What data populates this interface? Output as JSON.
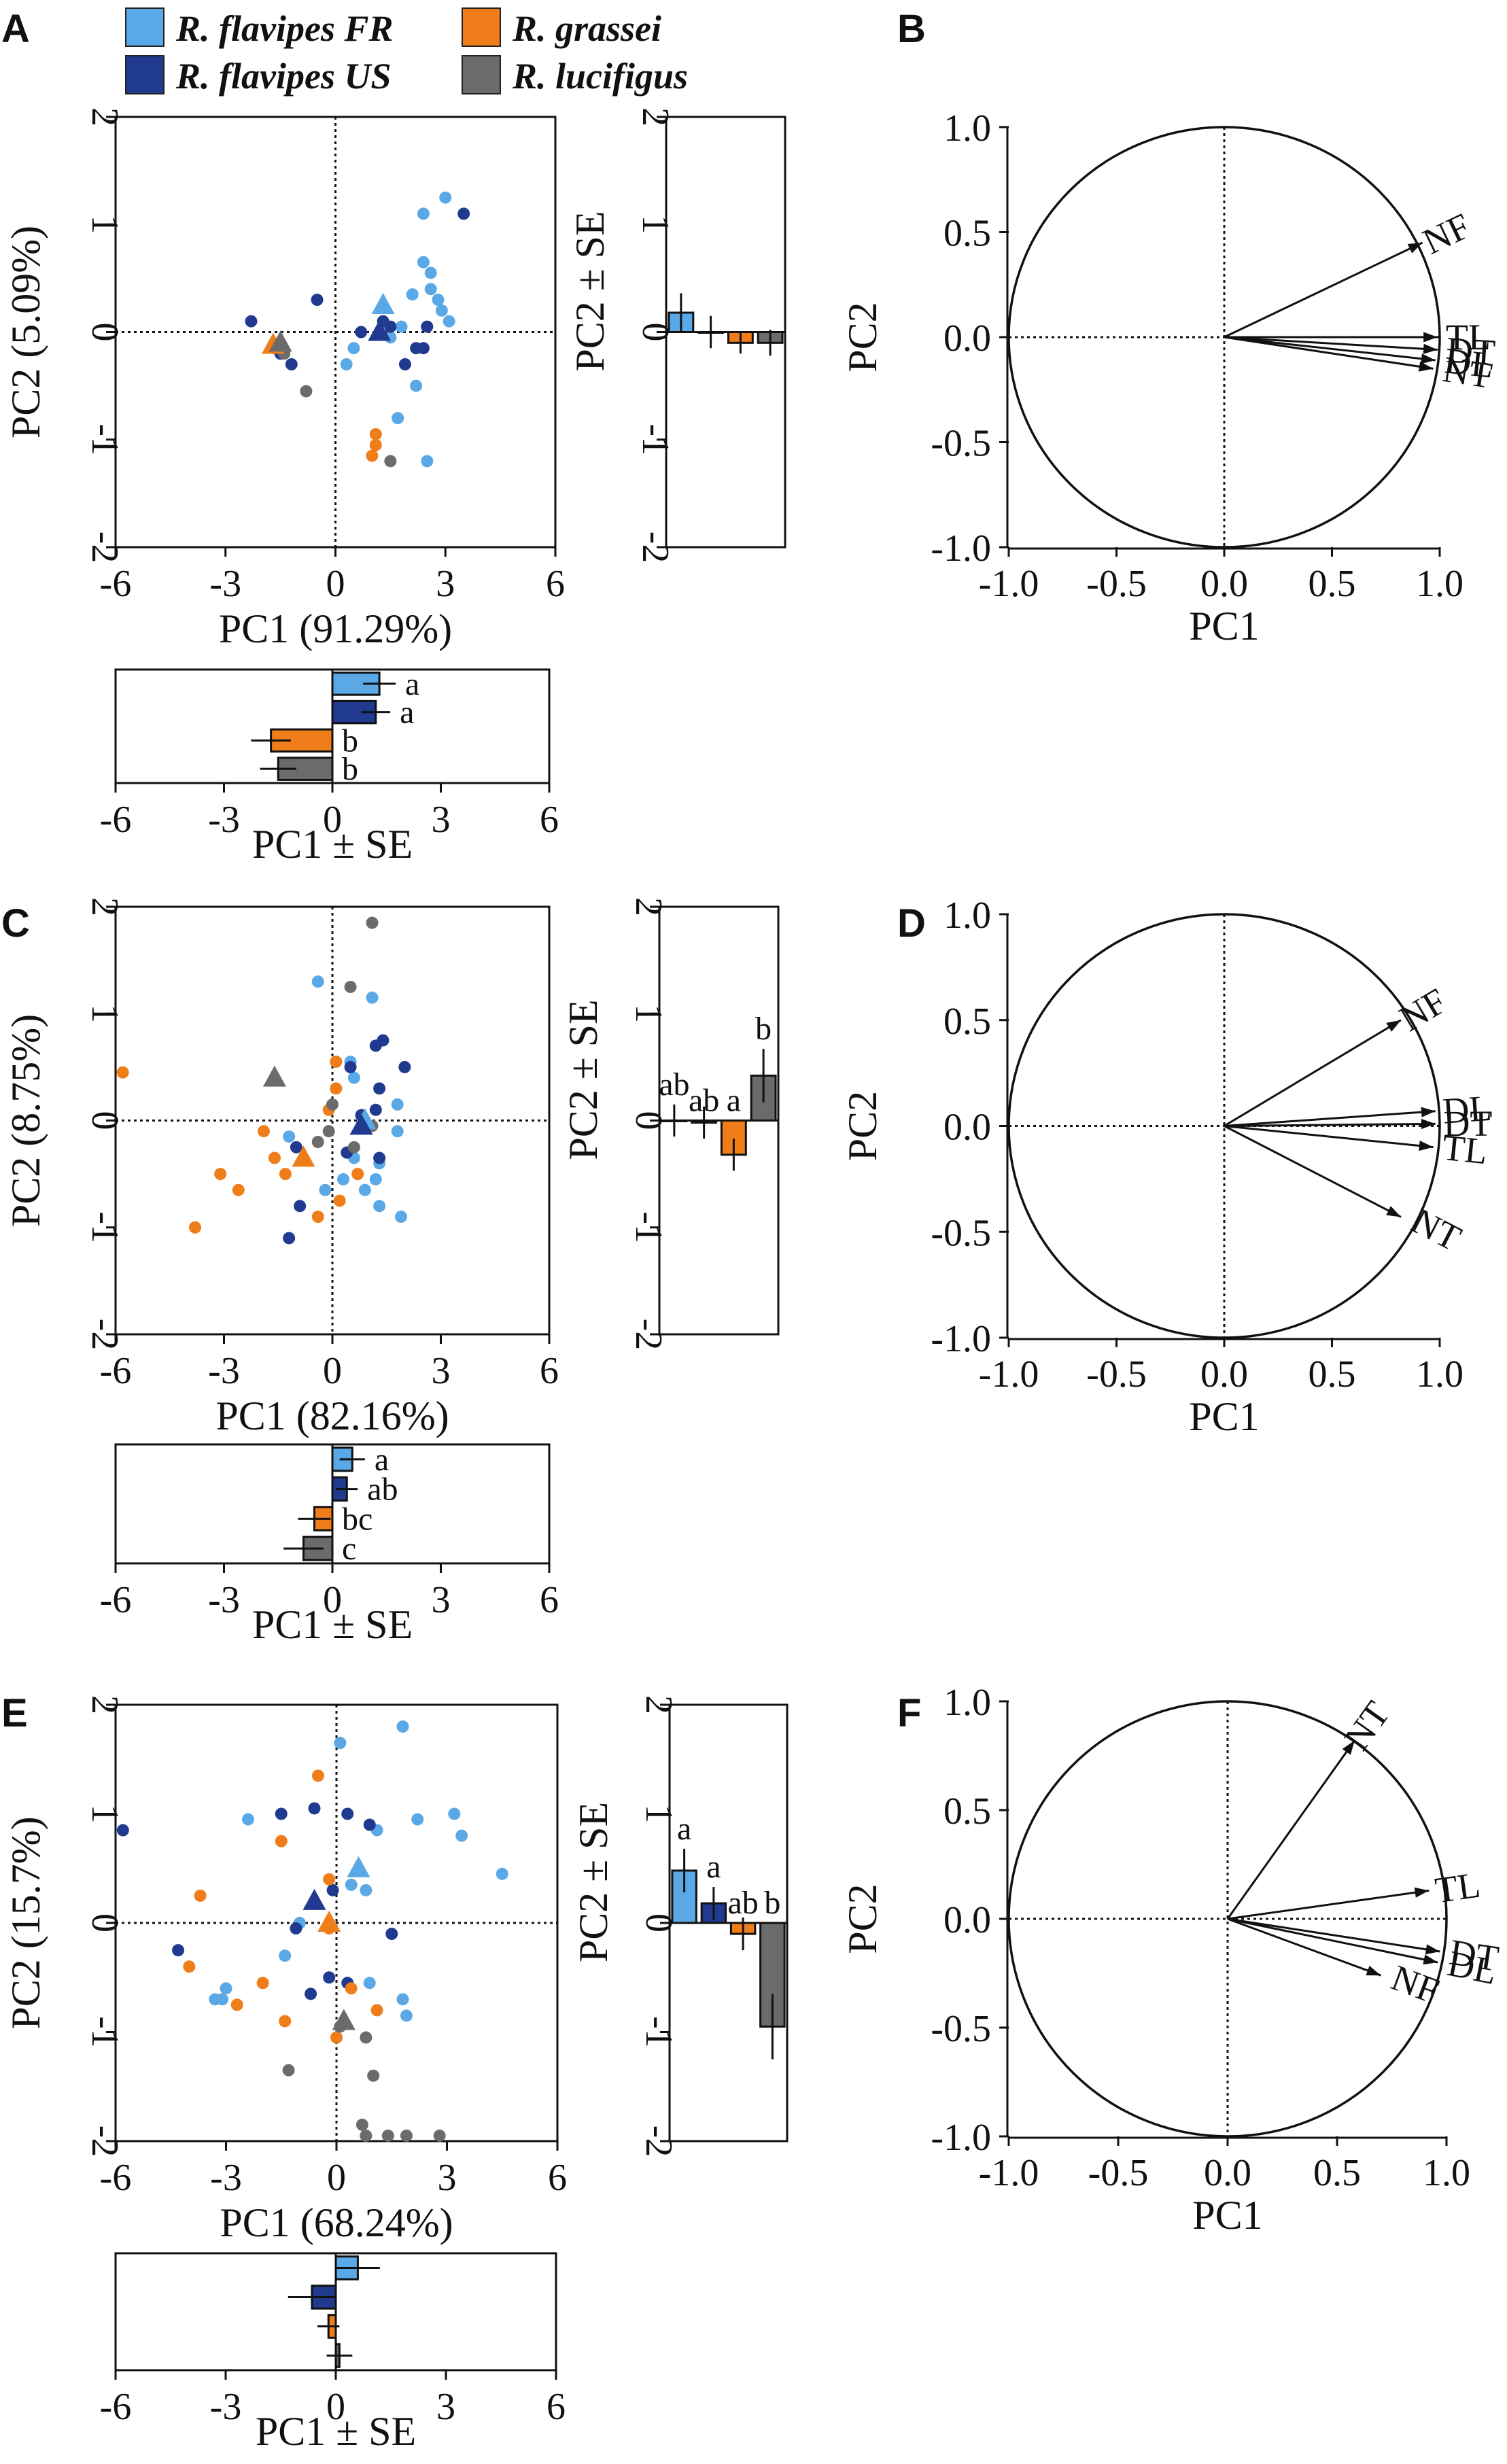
{
  "legend": {
    "entries": [
      {
        "label": "R. flavipes FR",
        "color": "#5aa9e6"
      },
      {
        "label": "R. flavipes US",
        "color": "#1f3a8f"
      },
      {
        "label": "R. grassei",
        "color": "#ef7d1a"
      },
      {
        "label": "R. lucifigus",
        "color": "#6b6b6b"
      }
    ]
  },
  "panel_labels": [
    "A",
    "B",
    "C",
    "D",
    "E",
    "F"
  ],
  "colors": {
    "fr": "#5aa9e6",
    "us": "#1f3a8f",
    "gr": "#ef7d1a",
    "lu": "#6b6b6b",
    "axis": "#111111"
  },
  "chart_data": [
    {
      "panel": "A",
      "type": "scatter",
      "xlabel": "PC1 (91.29%)",
      "ylabel": "PC2 (5.09%)",
      "xlim": [
        -6,
        6
      ],
      "ylim": [
        -2,
        2
      ],
      "xticks": [
        "-6",
        "-3",
        "0",
        "3",
        "6"
      ],
      "yticks": [
        "-2",
        "-1",
        "0",
        "1",
        "2"
      ],
      "series": [
        {
          "name": "R. flavipes FR",
          "points": [
            [
              2.4,
              1.1
            ],
            [
              3.0,
              1.25
            ],
            [
              2.4,
              0.65
            ],
            [
              2.6,
              0.55
            ],
            [
              2.6,
              0.4
            ],
            [
              2.8,
              0.3
            ],
            [
              2.9,
              0.2
            ],
            [
              3.1,
              0.1
            ],
            [
              2.1,
              0.35
            ],
            [
              1.8,
              0.05
            ],
            [
              1.5,
              -0.05
            ],
            [
              0.5,
              -0.15
            ],
            [
              0.3,
              -0.3
            ],
            [
              2.2,
              -0.5
            ],
            [
              1.7,
              -0.8
            ],
            [
              2.5,
              -1.2
            ]
          ],
          "centroid": [
            1.3,
            0.25
          ]
        },
        {
          "name": "R. flavipes US",
          "points": [
            [
              3.5,
              1.1
            ],
            [
              -2.3,
              0.1
            ],
            [
              -0.5,
              0.3
            ],
            [
              1.5,
              0.05
            ],
            [
              0.7,
              0.0
            ],
            [
              -1.5,
              -0.2
            ],
            [
              -1.2,
              -0.3
            ],
            [
              1.3,
              0.1
            ],
            [
              2.5,
              0.05
            ],
            [
              2.4,
              -0.15
            ],
            [
              2.2,
              -0.15
            ],
            [
              1.9,
              -0.3
            ]
          ],
          "centroid": [
            1.2,
            0.0
          ]
        },
        {
          "name": "R. grassei",
          "points": [
            [
              -1.7,
              -0.15
            ],
            [
              1.1,
              -0.95
            ],
            [
              1.1,
              -1.05
            ],
            [
              1.0,
              -1.15
            ]
          ],
          "centroid": [
            -1.7,
            -0.12
          ]
        },
        {
          "name": "R. lucifigus",
          "points": [
            [
              -1.4,
              -0.2
            ],
            [
              -0.8,
              -0.55
            ],
            [
              1.5,
              -1.2
            ]
          ],
          "centroid": [
            -1.5,
            -0.1
          ]
        }
      ]
    },
    {
      "panel": "A-PC2",
      "type": "bar",
      "orientation": "vertical",
      "ylabel": "PC2 ± SE",
      "ylim": [
        -2,
        2
      ],
      "yticks": [
        "-2",
        "-1",
        "0",
        "1",
        "2"
      ],
      "categories": [
        "R. flavipes FR",
        "R. flavipes US",
        "R. grassei",
        "R. lucifigus"
      ],
      "values": [
        0.18,
        0.0,
        -0.1,
        -0.1
      ],
      "errors": [
        0.18,
        0.15,
        0.1,
        0.12
      ],
      "letters": [
        "",
        "",
        "",
        ""
      ]
    },
    {
      "panel": "A-PC1",
      "type": "bar",
      "orientation": "horizontal",
      "xlabel": "PC1 ± SE",
      "xlim": [
        -6,
        6
      ],
      "xticks": [
        "-6",
        "-3",
        "0",
        "3",
        "6"
      ],
      "categories": [
        "R. flavipes FR",
        "R. flavipes US",
        "R. grassei",
        "R. lucifigus"
      ],
      "values": [
        1.3,
        1.2,
        -1.7,
        -1.5
      ],
      "errors": [
        0.45,
        0.4,
        0.55,
        0.5
      ],
      "letters": [
        "a",
        "a",
        "b",
        "b"
      ]
    },
    {
      "panel": "B",
      "type": "line",
      "subtype": "correlation-circle",
      "xlabel": "PC1",
      "ylabel": "PC2",
      "xlim": [
        -1,
        1
      ],
      "ylim": [
        -1,
        1
      ],
      "xticks": [
        "-1.0",
        "-0.5",
        "0.0",
        "0.5",
        "1.0"
      ],
      "yticks": [
        "-1.0",
        "-0.5",
        "0.0",
        "0.5",
        "1.0"
      ],
      "vectors": [
        {
          "label": "NF",
          "x": 0.92,
          "y": 0.45
        },
        {
          "label": "TL",
          "x": 0.99,
          "y": 0.0
        },
        {
          "label": "DT",
          "x": 0.99,
          "y": -0.06
        },
        {
          "label": "DL",
          "x": 0.98,
          "y": -0.11
        },
        {
          "label": "NT",
          "x": 0.97,
          "y": -0.15
        }
      ]
    },
    {
      "panel": "C",
      "type": "scatter",
      "xlabel": "PC1 (82.16%)",
      "ylabel": "PC2 (8.75%)",
      "xlim": [
        -6,
        6
      ],
      "ylim": [
        -2,
        2
      ],
      "xticks": [
        "-6",
        "-3",
        "0",
        "3",
        "6"
      ],
      "yticks": [
        "-2",
        "-1",
        "0",
        "1",
        "2"
      ],
      "series": [
        {
          "name": "R. flavipes FR",
          "points": [
            [
              -0.4,
              1.3
            ],
            [
              1.1,
              1.15
            ],
            [
              0.5,
              0.55
            ],
            [
              0.6,
              0.4
            ],
            [
              1.8,
              0.15
            ],
            [
              1.8,
              -0.1
            ],
            [
              -1.2,
              -0.15
            ],
            [
              0.6,
              -0.35
            ],
            [
              1.3,
              -0.4
            ],
            [
              1.2,
              -0.55
            ],
            [
              0.9,
              -0.65
            ],
            [
              1.3,
              -0.8
            ],
            [
              1.9,
              -0.9
            ],
            [
              0.3,
              -0.55
            ],
            [
              -0.2,
              -0.65
            ]
          ],
          "centroid": [
            0.9,
            0.0
          ]
        },
        {
          "name": "R. flavipes US",
          "points": [
            [
              1.4,
              0.75
            ],
            [
              1.2,
              0.7
            ],
            [
              0.5,
              0.5
            ],
            [
              2.0,
              0.5
            ],
            [
              1.3,
              0.3
            ],
            [
              1.2,
              0.1
            ],
            [
              0.8,
              0.05
            ],
            [
              -1.0,
              -0.25
            ],
            [
              0.4,
              -0.3
            ],
            [
              -0.9,
              -0.8
            ],
            [
              -1.2,
              -1.1
            ],
            [
              1.3,
              -0.35
            ]
          ],
          "centroid": [
            0.8,
            -0.05
          ]
        },
        {
          "name": "R. grassei",
          "points": [
            [
              -5.8,
              0.45
            ],
            [
              0.1,
              0.55
            ],
            [
              0.1,
              0.3
            ],
            [
              -0.1,
              0.1
            ],
            [
              -1.9,
              -0.1
            ],
            [
              -1.6,
              -0.35
            ],
            [
              -3.1,
              -0.5
            ],
            [
              -1.3,
              -0.5
            ],
            [
              -2.6,
              -0.65
            ],
            [
              -0.4,
              -0.9
            ],
            [
              -3.8,
              -1.0
            ],
            [
              0.2,
              -0.75
            ],
            [
              0.7,
              -0.5
            ]
          ],
          "centroid": [
            -0.8,
            -0.35
          ]
        },
        {
          "name": "R. lucifigus",
          "points": [
            [
              1.1,
              1.85
            ],
            [
              0.5,
              1.25
            ],
            [
              0.0,
              0.15
            ],
            [
              -0.1,
              -0.1
            ],
            [
              -0.4,
              -0.2
            ],
            [
              1.1,
              -0.05
            ],
            [
              0.6,
              -0.25
            ]
          ],
          "centroid": [
            -1.6,
            0.4
          ]
        }
      ]
    },
    {
      "panel": "C-PC2",
      "type": "bar",
      "orientation": "vertical",
      "ylabel": "PC2 ± SE",
      "ylim": [
        -2,
        2
      ],
      "yticks": [
        "-2",
        "-1",
        "0",
        "1",
        "2"
      ],
      "categories": [
        "R. flavipes FR",
        "R. flavipes US",
        "R. grassei",
        "R. lucifigus"
      ],
      "values": [
        0.0,
        -0.02,
        -0.32,
        0.42
      ],
      "errors": [
        0.15,
        0.15,
        0.15,
        0.25
      ],
      "letters": [
        "ab",
        "ab",
        "a",
        "b"
      ]
    },
    {
      "panel": "C-PC1",
      "type": "bar",
      "orientation": "horizontal",
      "xlabel": "PC1 ± SE",
      "xlim": [
        -6,
        6
      ],
      "xticks": [
        "-6",
        "-3",
        "0",
        "3",
        "6"
      ],
      "categories": [
        "R. flavipes FR",
        "R. flavipes US",
        "R. grassei",
        "R. lucifigus"
      ],
      "values": [
        0.55,
        0.4,
        -0.5,
        -0.8
      ],
      "errors": [
        0.35,
        0.3,
        0.45,
        0.55
      ],
      "letters": [
        "a",
        "ab",
        "bc",
        "c"
      ]
    },
    {
      "panel": "D",
      "type": "line",
      "subtype": "correlation-circle",
      "xlabel": "PC1",
      "ylabel": "PC2",
      "xlim": [
        -1,
        1
      ],
      "ylim": [
        -1,
        1
      ],
      "xticks": [
        "-1.0",
        "-0.5",
        "0.0",
        "0.5",
        "1.0"
      ],
      "yticks": [
        "-1.0",
        "-0.5",
        "0.0",
        "0.5",
        "1.0"
      ],
      "vectors": [
        {
          "label": "NF",
          "x": 0.82,
          "y": 0.5
        },
        {
          "label": "DL",
          "x": 0.98,
          "y": 0.07
        },
        {
          "label": "DT",
          "x": 0.98,
          "y": 0.01
        },
        {
          "label": "TL",
          "x": 0.97,
          "y": -0.1
        },
        {
          "label": "NT",
          "x": 0.82,
          "y": -0.43
        }
      ]
    },
    {
      "panel": "E",
      "type": "scatter",
      "xlabel": "PC1 (68.24%)",
      "ylabel": "PC2 (15.7%)",
      "xlim": [
        -6,
        6
      ],
      "ylim": [
        -2,
        2
      ],
      "xticks": [
        "-6",
        "-3",
        "0",
        "3",
        "6"
      ],
      "yticks": [
        "-2",
        "-1",
        "0",
        "1",
        "2"
      ],
      "series": [
        {
          "name": "R. flavipes FR",
          "points": [
            [
              1.8,
              1.8
            ],
            [
              0.1,
              1.65
            ],
            [
              -2.4,
              0.95
            ],
            [
              3.2,
              1.0
            ],
            [
              3.4,
              0.8
            ],
            [
              4.5,
              0.45
            ],
            [
              2.2,
              0.95
            ],
            [
              1.1,
              0.85
            ],
            [
              0.4,
              0.35
            ],
            [
              0.8,
              0.3
            ],
            [
              -1.0,
              0.0
            ],
            [
              -3.3,
              -0.7
            ],
            [
              -3.0,
              -0.6
            ],
            [
              -3.1,
              -0.7
            ],
            [
              -1.4,
              -0.3
            ],
            [
              0.9,
              -0.55
            ],
            [
              1.8,
              -0.7
            ],
            [
              1.9,
              -0.85
            ]
          ],
          "centroid": [
            0.6,
            0.5
          ]
        },
        {
          "name": "R. flavipes US",
          "points": [
            [
              -5.8,
              0.85
            ],
            [
              -1.5,
              1.0
            ],
            [
              -0.6,
              1.05
            ],
            [
              0.3,
              1.0
            ],
            [
              0.9,
              0.9
            ],
            [
              -0.1,
              0.3
            ],
            [
              -1.1,
              -0.05
            ],
            [
              -4.3,
              -0.25
            ],
            [
              1.5,
              -0.1
            ],
            [
              -0.2,
              -0.5
            ],
            [
              0.3,
              -0.55
            ],
            [
              -0.7,
              -0.65
            ]
          ],
          "centroid": [
            -0.6,
            0.2
          ]
        },
        {
          "name": "R. grassei",
          "points": [
            [
              -0.5,
              1.35
            ],
            [
              -1.5,
              0.75
            ],
            [
              -0.2,
              0.4
            ],
            [
              -3.7,
              0.25
            ],
            [
              -0.2,
              -0.05
            ],
            [
              -4.0,
              -0.4
            ],
            [
              -2.0,
              -0.55
            ],
            [
              0.4,
              -0.6
            ],
            [
              -2.7,
              -0.75
            ],
            [
              -1.4,
              -0.9
            ],
            [
              1.1,
              -0.8
            ],
            [
              0.0,
              -1.05
            ]
          ],
          "centroid": [
            -0.2,
            0.0
          ]
        },
        {
          "name": "R. lucifigus",
          "points": [
            [
              -1.3,
              -1.35
            ],
            [
              0.1,
              -0.95
            ],
            [
              0.8,
              -1.05
            ],
            [
              1.0,
              -1.4
            ],
            [
              0.7,
              -1.85
            ],
            [
              0.8,
              -1.95
            ],
            [
              1.4,
              -1.95
            ],
            [
              1.9,
              -1.95
            ],
            [
              2.8,
              -1.95
            ]
          ],
          "centroid": [
            0.2,
            -0.9
          ]
        }
      ]
    },
    {
      "panel": "E-PC2",
      "type": "bar",
      "orientation": "vertical",
      "ylabel": "PC2 ± SE",
      "ylim": [
        -2,
        2
      ],
      "yticks": [
        "-2",
        "-1",
        "0",
        "1",
        "2"
      ],
      "categories": [
        "R. flavipes FR",
        "R. flavipes US",
        "R. grassei",
        "R. lucifigus"
      ],
      "values": [
        0.48,
        0.18,
        -0.1,
        -0.95
      ],
      "errors": [
        0.2,
        0.15,
        0.15,
        0.3
      ],
      "letters": [
        "a",
        "a",
        "ab",
        "b"
      ]
    },
    {
      "panel": "E-PC1",
      "type": "bar",
      "orientation": "horizontal",
      "xlabel": "PC1 ± SE",
      "xlim": [
        -6,
        6
      ],
      "xticks": [
        "-6",
        "-3",
        "0",
        "3",
        "6"
      ],
      "categories": [
        "R. flavipes FR",
        "R. flavipes US",
        "R. grassei",
        "R. lucifigus"
      ],
      "values": [
        0.6,
        -0.65,
        -0.2,
        0.1
      ],
      "errors": [
        0.6,
        0.65,
        0.3,
        0.35
      ],
      "letters": [
        "",
        "",
        "",
        ""
      ]
    },
    {
      "panel": "F",
      "type": "line",
      "subtype": "correlation-circle",
      "xlabel": "PC1",
      "ylabel": "PC2",
      "xlim": [
        -1,
        1
      ],
      "ylim": [
        -1,
        1
      ],
      "xticks": [
        "-1.0",
        "-0.5",
        "0.0",
        "0.5",
        "1.0"
      ],
      "yticks": [
        "-1.0",
        "-0.5",
        "0.0",
        "0.5",
        "1.0"
      ],
      "vectors": [
        {
          "label": "NT",
          "x": 0.58,
          "y": 0.82
        },
        {
          "label": "TL",
          "x": 0.92,
          "y": 0.13
        },
        {
          "label": "DT",
          "x": 0.97,
          "y": -0.15
        },
        {
          "label": "DL",
          "x": 0.96,
          "y": -0.2
        },
        {
          "label": "NF",
          "x": 0.7,
          "y": -0.26
        }
      ]
    }
  ]
}
